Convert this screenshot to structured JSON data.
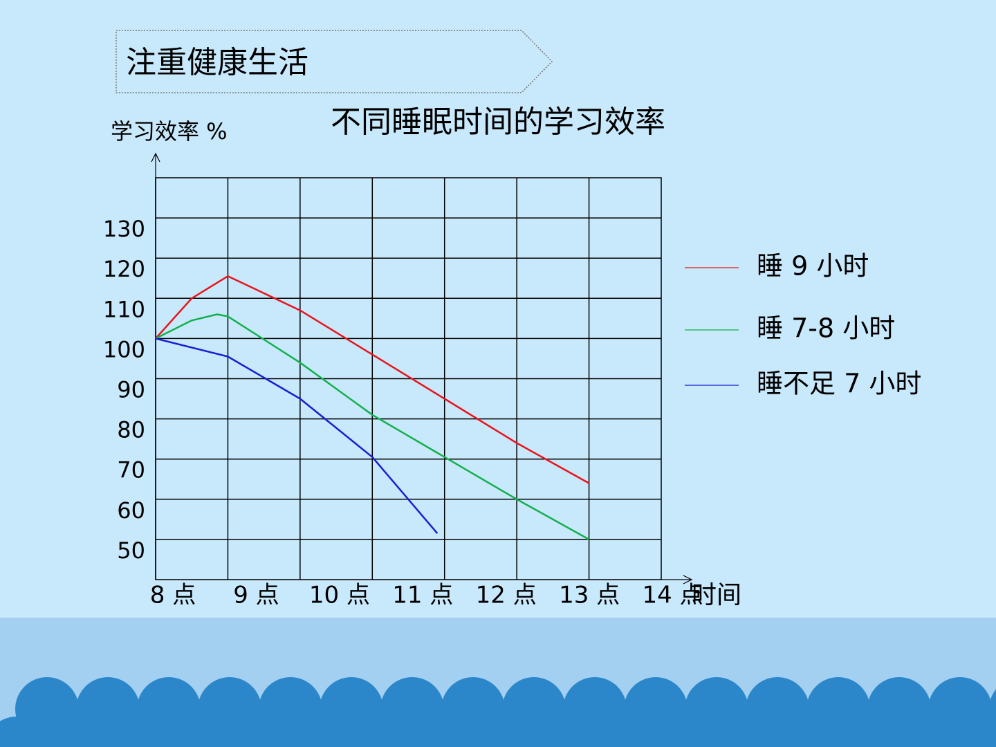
{
  "header": {
    "title": "注重健康生活"
  },
  "chart_data": {
    "type": "line",
    "title": "不同睡眠时间的学习效率",
    "y_label": "学习效率 %",
    "x_label": "时间",
    "xlim": [
      8,
      15
    ],
    "ylim": [
      40,
      140
    ],
    "xticks": [
      {
        "value": 8,
        "label": "8 点"
      },
      {
        "value": 9,
        "label": "9 点"
      },
      {
        "value": 10,
        "label": "10 点"
      },
      {
        "value": 11,
        "label": "11 点"
      },
      {
        "value": 12,
        "label": "12 点"
      },
      {
        "value": 13,
        "label": "13 点"
      },
      {
        "value": 14,
        "label": "14 点"
      }
    ],
    "yticks": [
      50,
      60,
      70,
      80,
      90,
      100,
      110,
      120,
      130
    ],
    "grid": true,
    "legend": "right",
    "series": [
      {
        "name": "睡 9 小时",
        "color": "#e8141c",
        "x": [
          8,
          8.5,
          9,
          10,
          11,
          12,
          13,
          14
        ],
        "values": [
          100,
          110,
          115.5,
          107,
          96,
          85,
          74,
          64
        ]
      },
      {
        "name": "睡 7-8 小时",
        "color": "#12b04c",
        "x": [
          8,
          8.5,
          8.85,
          9,
          10,
          11,
          12,
          13,
          14
        ],
        "values": [
          100,
          104.5,
          106,
          105.5,
          94,
          81,
          70.5,
          60,
          50
        ]
      },
      {
        "name": "睡不足 7 小时",
        "color": "#1a1fd0",
        "x": [
          8,
          9,
          10,
          11,
          11.9
        ],
        "values": [
          100,
          95.5,
          85,
          70.5,
          51.5
        ]
      }
    ]
  }
}
